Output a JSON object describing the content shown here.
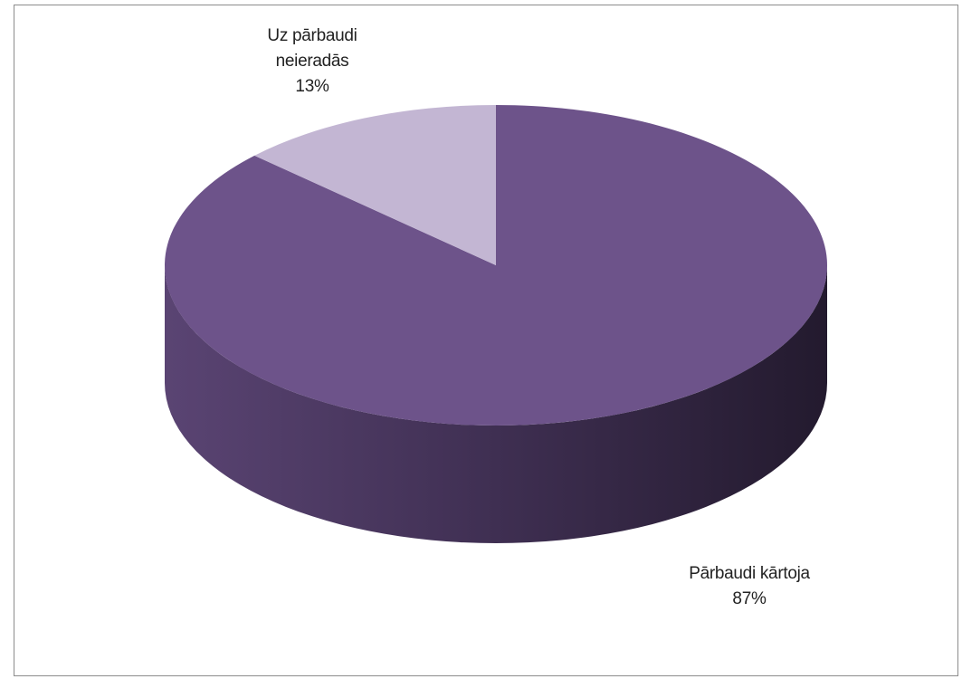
{
  "chart_data": {
    "type": "pie3d",
    "categories": [
      "Pārbaudi kārtoja",
      "Uz pārbaudi neieradās"
    ],
    "values": [
      87,
      13
    ],
    "value_labels": [
      "87%",
      "13%"
    ],
    "colors": [
      "#6d538a",
      "#c3b6d3"
    ]
  }
}
